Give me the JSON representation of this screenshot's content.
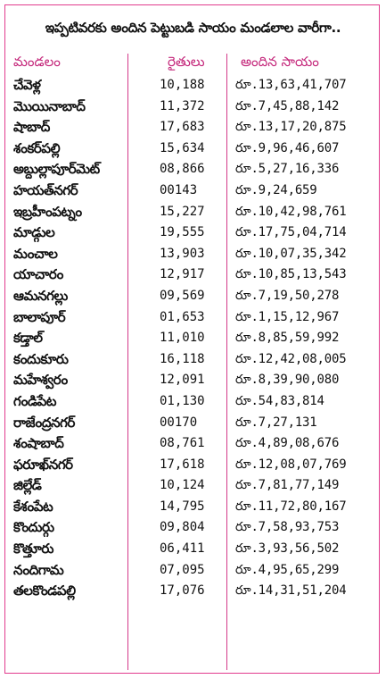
{
  "title": "ఇప్పటివరకు అందిన పెట్టుబడి సాయం మండలాల వారీగా..",
  "headers": {
    "mandal": "మండలం",
    "farmers": "రైతులు",
    "amount": "అందిన సాయం"
  },
  "rows": [
    {
      "mandal": "చేవెళ్ల",
      "farmers": "10,188",
      "amount": "రూ.13,63,41,707"
    },
    {
      "mandal": "మొయినాబాద్",
      "farmers": "11,372",
      "amount": "రూ.7,45,88,142"
    },
    {
      "mandal": "షాబాద్",
      "farmers": "17,683",
      "amount": "రూ.13,17,20,875"
    },
    {
      "mandal": "శంకర్‌పల్లి",
      "farmers": "15,634",
      "amount": "రూ.9,96,46,607"
    },
    {
      "mandal": "అబ్దుల్లాపూర్‌మెట్",
      "farmers": "08,866",
      "amount": "రూ.5,27,16,336"
    },
    {
      "mandal": "హయత్‌నగర్",
      "farmers": "00143",
      "amount": "రూ.9,24,659"
    },
    {
      "mandal": "ఇబ్రహీంపట్నం",
      "farmers": "15,227",
      "amount": "రూ.10,42,98,761"
    },
    {
      "mandal": "మాడ్గుల",
      "farmers": "19,555",
      "amount": "రూ.17,75,04,714"
    },
    {
      "mandal": "మంచాల",
      "farmers": "13,903",
      "amount": "రూ.10,07,35,342"
    },
    {
      "mandal": "యాచారం",
      "farmers": "12,917",
      "amount": "రూ.10,85,13,543"
    },
    {
      "mandal": "ఆమనగల్లు",
      "farmers": "09,569",
      "amount": "రూ.7,19,50,278"
    },
    {
      "mandal": "బాలాపూర్",
      "farmers": "01,653",
      "amount": "రూ.1,15,12,967"
    },
    {
      "mandal": "కడ్తాల్",
      "farmers": "11,010",
      "amount": "రూ.8,85,59,992"
    },
    {
      "mandal": "కందుకూరు",
      "farmers": "16,118",
      "amount": "రూ.12,42,08,005"
    },
    {
      "mandal": "మహేశ్వరం",
      "farmers": "12,091",
      "amount": "రూ.8,39,90,080"
    },
    {
      "mandal": "గండిపేట",
      "farmers": "01,130",
      "amount": "రూ.54,83,814"
    },
    {
      "mandal": "రాజేంద్రనగర్",
      "farmers": "00170",
      "amount": "రూ.7,27,131"
    },
    {
      "mandal": "శంషాబాద్",
      "farmers": "08,761",
      "amount": "రూ.4,89,08,676"
    },
    {
      "mandal": "ఫరూఖ్‌నగర్",
      "farmers": "17,618",
      "amount": "రూ.12,08,07,769"
    },
    {
      "mandal": "జిల్లేడ్",
      "farmers": "10,124",
      "amount": "రూ.7,81,77,149"
    },
    {
      "mandal": "కేశంపేట",
      "farmers": "14,795",
      "amount": "రూ.11,72,80,167"
    },
    {
      "mandal": "కొందుర్గు",
      "farmers": "09,804",
      "amount": "రూ.7,58,93,753"
    },
    {
      "mandal": "కొత్తూరు",
      "farmers": "06,411",
      "amount": "రూ.3,93,56,502"
    },
    {
      "mandal": "నందిగామ",
      "farmers": "07,095",
      "amount": "రూ.4,95,65,299"
    },
    {
      "mandal": "తలకొండపల్లి",
      "farmers": "17,076",
      "amount": "రూ.14,31,51,204"
    }
  ]
}
